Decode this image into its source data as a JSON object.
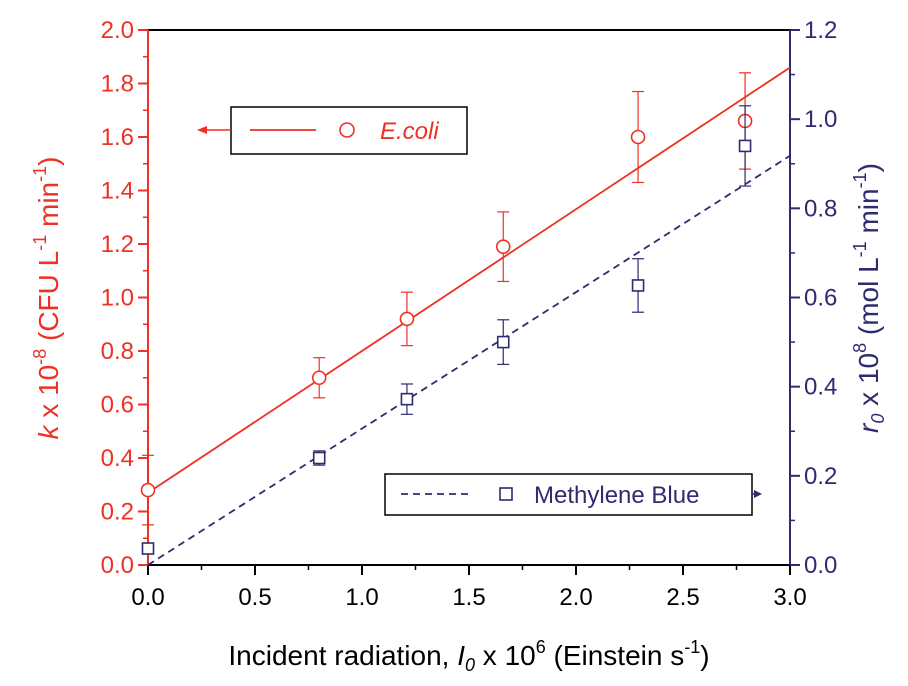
{
  "chart_data": {
    "type": "scatter",
    "xlabel": {
      "main": "Incident radiation, ",
      "var": "I",
      "sub": "0",
      "mid": " x 10",
      "sup": "6",
      "unit": " (Einstein s",
      "unit_sup": "-1",
      "end": ")"
    },
    "ylabel_left": {
      "var": "k",
      "mid": " x 10",
      "sup": "-8",
      "unit": " (CFU L",
      "sup2": "-1",
      "unit2": " min",
      "sup3": "-1",
      "end": ")"
    },
    "ylabel_right": {
      "var": "r",
      "sub": "0",
      "mid": " x 10",
      "sup": "8",
      "unit": " (mol L",
      "sup2": "-1",
      "unit2": " min",
      "sup3": "-1",
      "end": ")"
    },
    "xlim": [
      0.0,
      3.0
    ],
    "ylim_left": [
      0.0,
      2.0
    ],
    "ylim_right": [
      0.0,
      1.2
    ],
    "x_ticks": [
      "0.0",
      "0.5",
      "1.0",
      "1.5",
      "2.0",
      "2.5",
      "3.0"
    ],
    "y_left_ticks": [
      "0.0",
      "0.2",
      "0.4",
      "0.6",
      "0.8",
      "1.0",
      "1.2",
      "1.4",
      "1.6",
      "1.8",
      "2.0"
    ],
    "y_right_ticks": [
      "0.0",
      "0.2",
      "0.4",
      "0.6",
      "0.8",
      "1.0",
      "1.2"
    ],
    "series": [
      {
        "name": "E.coli",
        "axis": "left",
        "marker": "circle",
        "color": "#ee3124",
        "line_style": "solid",
        "points": [
          {
            "x": 0.0,
            "y": 0.28,
            "err": 0.13
          },
          {
            "x": 0.8,
            "y": 0.7,
            "err": 0.075
          },
          {
            "x": 1.21,
            "y": 0.92,
            "err": 0.1
          },
          {
            "x": 1.66,
            "y": 1.19,
            "err": 0.13
          },
          {
            "x": 2.29,
            "y": 1.6,
            "err": 0.17
          },
          {
            "x": 2.79,
            "y": 1.66,
            "err": 0.18
          }
        ],
        "fit": {
          "x": [
            0.0,
            3.0
          ],
          "y": [
            0.27,
            1.86
          ]
        }
      },
      {
        "name": "Methylene Blue",
        "axis": "right",
        "marker": "square",
        "color": "#2e2b6f",
        "line_style": "dashed",
        "points": [
          {
            "x": 0.0,
            "y": 0.037,
            "err": 0.006
          },
          {
            "x": 0.8,
            "y": 0.24,
            "err": 0.016
          },
          {
            "x": 1.21,
            "y": 0.372,
            "err": 0.034
          },
          {
            "x": 1.66,
            "y": 0.5,
            "err": 0.05
          },
          {
            "x": 2.29,
            "y": 0.627,
            "err": 0.06
          },
          {
            "x": 2.79,
            "y": 0.94,
            "err": 0.09
          }
        ],
        "fit": {
          "x": [
            0.0,
            3.0
          ],
          "y": [
            0.0,
            0.918
          ]
        }
      }
    ],
    "legends": [
      {
        "series": "E.coli",
        "placement": "upper-left, arrow pointing to left axis"
      },
      {
        "series": "Methylene Blue",
        "placement": "lower-right, arrow pointing to right axis"
      }
    ],
    "grid": false
  }
}
